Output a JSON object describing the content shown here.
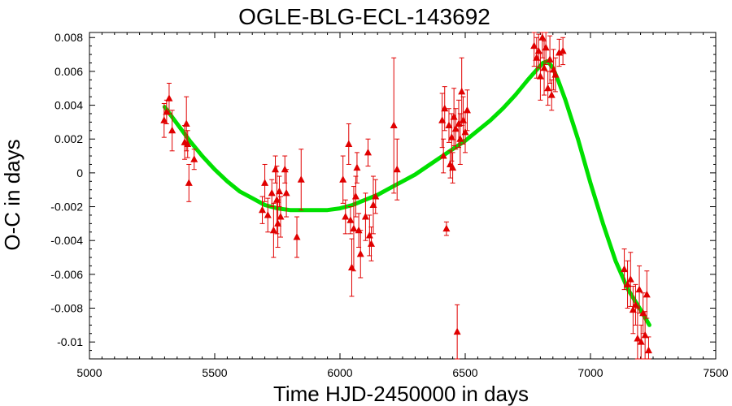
{
  "chart_data": {
    "type": "scatter",
    "title": "OGLE-BLG-ECL-143692",
    "xlabel": "Time HJD-2450000 in days",
    "ylabel": "O-C in days",
    "xlim": [
      5000,
      7500
    ],
    "ylim": [
      -0.011,
      0.0083
    ],
    "x_ticks": [
      5000,
      5500,
      6000,
      6500,
      7000,
      7500
    ],
    "x_tick_labels": [
      "5000",
      "5500",
      "6000",
      "6500",
      "7000",
      "7500"
    ],
    "y_ticks": [
      -0.01,
      -0.008,
      -0.006,
      -0.004,
      -0.002,
      0,
      0.002,
      0.004,
      0.006,
      0.008
    ],
    "y_tick_labels": [
      "-0.01",
      "-0.008",
      "-0.006",
      "-0.004",
      "-0.002",
      "0",
      "0.002",
      "0.004",
      "0.006",
      "0.008"
    ],
    "grid": false,
    "colors": {
      "points": "#e00000",
      "fit": "#00e000"
    },
    "series": [
      {
        "kind": "points-with-errorbars",
        "points": [
          {
            "x": 5298,
            "y": 0.0031,
            "err": 0.001
          },
          {
            "x": 5308,
            "y": 0.0036,
            "err": 0.0007
          },
          {
            "x": 5318,
            "y": 0.0044,
            "err": 0.0009
          },
          {
            "x": 5330,
            "y": 0.0025,
            "err": 0.0012
          },
          {
            "x": 5380,
            "y": 0.0018,
            "err": 0.001
          },
          {
            "x": 5387,
            "y": 0.0029,
            "err": 0.0016
          },
          {
            "x": 5392,
            "y": 0.0017,
            "err": 0.0008
          },
          {
            "x": 5397,
            "y": -0.0006,
            "err": 0.0011
          },
          {
            "x": 5418,
            "y": 0.0008,
            "err": 0.0006
          },
          {
            "x": 5690,
            "y": -0.0022,
            "err": 0.0008
          },
          {
            "x": 5700,
            "y": -0.0006,
            "err": 0.0011
          },
          {
            "x": 5712,
            "y": -0.0025,
            "err": 0.001
          },
          {
            "x": 5728,
            "y": -0.0012,
            "err": 0.0008
          },
          {
            "x": 5735,
            "y": -0.0034,
            "err": 0.0016
          },
          {
            "x": 5742,
            "y": 0.0002,
            "err": 0.0008
          },
          {
            "x": 5748,
            "y": -0.0016,
            "err": 0.002
          },
          {
            "x": 5752,
            "y": -0.003,
            "err": 0.0014
          },
          {
            "x": 5758,
            "y": -0.0011,
            "err": 0.0009
          },
          {
            "x": 5763,
            "y": -0.0026,
            "err": 0.0012
          },
          {
            "x": 5780,
            "y": 0.0002,
            "err": 0.0008
          },
          {
            "x": 5786,
            "y": -0.0012,
            "err": 0.0014
          },
          {
            "x": 5828,
            "y": -0.0038,
            "err": 0.0012
          },
          {
            "x": 5845,
            "y": -0.0004,
            "err": 0.0018
          },
          {
            "x": 6012,
            "y": -0.0004,
            "err": 0.0014
          },
          {
            "x": 6022,
            "y": -0.0026,
            "err": 0.001
          },
          {
            "x": 6035,
            "y": 0.0017,
            "err": 0.0012
          },
          {
            "x": 6042,
            "y": -0.0028,
            "err": 0.0008
          },
          {
            "x": 6047,
            "y": -0.0056,
            "err": 0.0017
          },
          {
            "x": 6055,
            "y": -0.0033,
            "err": 0.0025
          },
          {
            "x": 6063,
            "y": -0.0014,
            "err": 0.0012
          },
          {
            "x": 6068,
            "y": 0.0003,
            "err": 0.0009
          },
          {
            "x": 6075,
            "y": -0.0034,
            "err": 0.001
          },
          {
            "x": 6082,
            "y": -0.0048,
            "err": 0.0014
          },
          {
            "x": 6102,
            "y": -0.0026,
            "err": 0.0014
          },
          {
            "x": 6112,
            "y": 0.0012,
            "err": 0.0008
          },
          {
            "x": 6118,
            "y": -0.0037,
            "err": 0.0012
          },
          {
            "x": 6125,
            "y": -0.0042,
            "err": 0.001
          },
          {
            "x": 6133,
            "y": -0.0019,
            "err": 0.0017
          },
          {
            "x": 6142,
            "y": -0.0014,
            "err": 0.001
          },
          {
            "x": 6215,
            "y": 0.0028,
            "err": 0.004
          },
          {
            "x": 6228,
            "y": 0.0002,
            "err": 0.0018
          },
          {
            "x": 6408,
            "y": 0.0031,
            "err": 0.0016
          },
          {
            "x": 6413,
            "y": 0.001,
            "err": 0.001
          },
          {
            "x": 6418,
            "y": 0.0038,
            "err": 0.0013
          },
          {
            "x": 6425,
            "y": -0.0033,
            "err": 0.0004
          },
          {
            "x": 6435,
            "y": 0.0028,
            "err": 0.001
          },
          {
            "x": 6440,
            "y": 0.0005,
            "err": 0.0008
          },
          {
            "x": 6446,
            "y": 0.0021,
            "err": 0.0014
          },
          {
            "x": 6450,
            "y": 0.0003,
            "err": 0.0009
          },
          {
            "x": 6455,
            "y": 0.0033,
            "err": 0.0017
          },
          {
            "x": 6462,
            "y": 0.0026,
            "err": 0.0012
          },
          {
            "x": 6468,
            "y": -0.0094,
            "err": 0.0016
          },
          {
            "x": 6474,
            "y": 0.0029,
            "err": 0.0014
          },
          {
            "x": 6480,
            "y": 0.002,
            "err": 0.0015
          },
          {
            "x": 6486,
            "y": 0.0048,
            "err": 0.002
          },
          {
            "x": 6492,
            "y": 0.0031,
            "err": 0.0014
          },
          {
            "x": 6500,
            "y": 0.0024,
            "err": 0.0012
          },
          {
            "x": 6508,
            "y": 0.0037,
            "err": 0.0012
          },
          {
            "x": 6775,
            "y": 0.0075,
            "err": 0.0012
          },
          {
            "x": 6785,
            "y": 0.0068,
            "err": 0.0012
          },
          {
            "x": 6793,
            "y": 0.0072,
            "err": 0.001
          },
          {
            "x": 6800,
            "y": 0.0057,
            "err": 0.0014
          },
          {
            "x": 6808,
            "y": 0.008,
            "err": 0.0012
          },
          {
            "x": 6815,
            "y": 0.0062,
            "err": 0.0016
          },
          {
            "x": 6822,
            "y": 0.0074,
            "err": 0.001
          },
          {
            "x": 6830,
            "y": 0.005,
            "err": 0.001
          },
          {
            "x": 6838,
            "y": 0.0067,
            "err": 0.0014
          },
          {
            "x": 6845,
            "y": 0.0046,
            "err": 0.0009
          },
          {
            "x": 6852,
            "y": 0.0061,
            "err": 0.0012
          },
          {
            "x": 6860,
            "y": 0.0058,
            "err": 0.001
          },
          {
            "x": 6875,
            "y": 0.0071,
            "err": 0.0008
          },
          {
            "x": 6890,
            "y": 0.0072,
            "err": 0.0008
          },
          {
            "x": 7135,
            "y": -0.0057,
            "err": 0.0012
          },
          {
            "x": 7148,
            "y": -0.0066,
            "err": 0.0014
          },
          {
            "x": 7160,
            "y": -0.0063,
            "err": 0.0016
          },
          {
            "x": 7170,
            "y": -0.0081,
            "err": 0.0014
          },
          {
            "x": 7180,
            "y": -0.0078,
            "err": 0.0012
          },
          {
            "x": 7188,
            "y": -0.0098,
            "err": 0.0018
          },
          {
            "x": 7195,
            "y": -0.0069,
            "err": 0.0014
          },
          {
            "x": 7202,
            "y": -0.01,
            "err": 0.001
          },
          {
            "x": 7210,
            "y": -0.0083,
            "err": 0.0012
          },
          {
            "x": 7218,
            "y": -0.0096,
            "err": 0.0014
          },
          {
            "x": 7225,
            "y": -0.0072,
            "err": 0.0014
          },
          {
            "x": 7232,
            "y": -0.0105,
            "err": 0.0008
          }
        ]
      },
      {
        "kind": "fit-line",
        "x": [
          5300,
          5350,
          5400,
          5450,
          5500,
          5550,
          5600,
          5650,
          5700,
          5750,
          5800,
          5850,
          5900,
          5950,
          6000,
          6050,
          6100,
          6150,
          6200,
          6250,
          6300,
          6350,
          6400,
          6450,
          6500,
          6550,
          6600,
          6650,
          6700,
          6750,
          6780,
          6810,
          6830,
          6850,
          6870,
          6900,
          6950,
          7000,
          7050,
          7100,
          7150,
          7200,
          7235
        ],
        "y": [
          0.0039,
          0.0029,
          0.0019,
          0.001,
          0.0002,
          -0.0005,
          -0.0011,
          -0.0015,
          -0.0019,
          -0.0021,
          -0.0022,
          -0.0022,
          -0.0022,
          -0.0022,
          -0.0021,
          -0.0019,
          -0.0016,
          -0.0013,
          -0.0009,
          -0.0005,
          -0.0001,
          0.0004,
          0.0009,
          0.0014,
          0.0019,
          0.0025,
          0.0031,
          0.0038,
          0.0046,
          0.0055,
          0.006,
          0.0065,
          0.0066,
          0.0062,
          0.0055,
          0.0043,
          0.002,
          -0.0006,
          -0.003,
          -0.0052,
          -0.0069,
          -0.0081,
          -0.009
        ]
      }
    ]
  }
}
